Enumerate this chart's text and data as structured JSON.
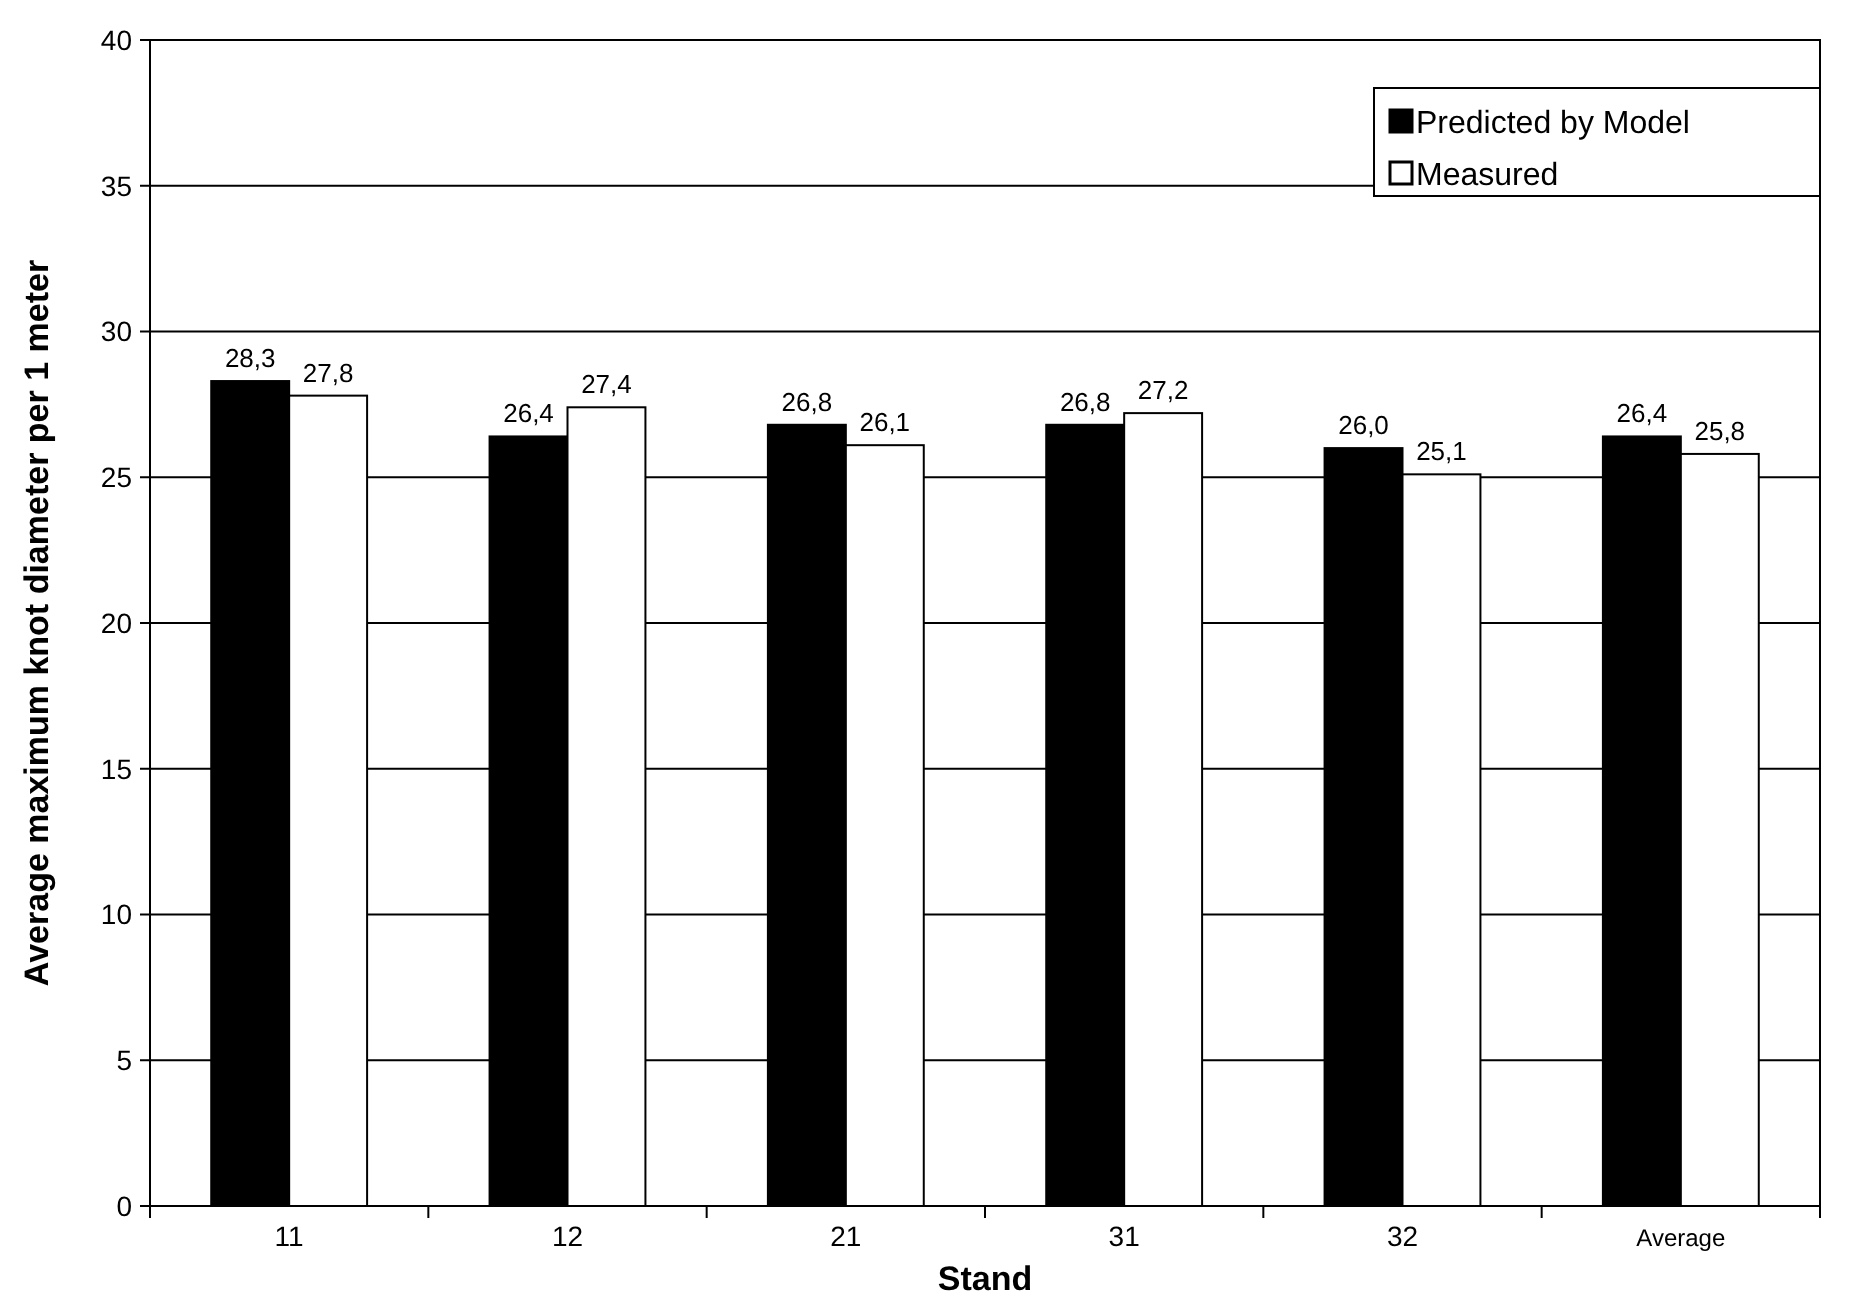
{
  "chart_data": {
    "type": "bar",
    "xlabel": "Stand",
    "ylabel": "Average maximum knot diameter per 1 meter",
    "categories": [
      "11",
      "12",
      "21",
      "31",
      "32",
      "Average"
    ],
    "series": [
      {
        "name": "Predicted by Model",
        "color": "#000000",
        "values": [
          28.3,
          26.4,
          26.8,
          26.8,
          26.0,
          26.4
        ],
        "value_labels": [
          "28,3",
          "26,4",
          "26,8",
          "26,8",
          "26,0",
          "26,4"
        ]
      },
      {
        "name": "Measured",
        "color": "#ffffff",
        "values": [
          27.8,
          27.4,
          26.1,
          27.2,
          25.1,
          25.8
        ],
        "value_labels": [
          "27,8",
          "27,4",
          "26,1",
          "27,2",
          "25,1",
          "25,8"
        ]
      }
    ],
    "ylim": [
      0,
      40
    ],
    "yticks": [
      0,
      5,
      10,
      15,
      20,
      25,
      30,
      35,
      40
    ],
    "grid": "y",
    "legend": "top right"
  }
}
